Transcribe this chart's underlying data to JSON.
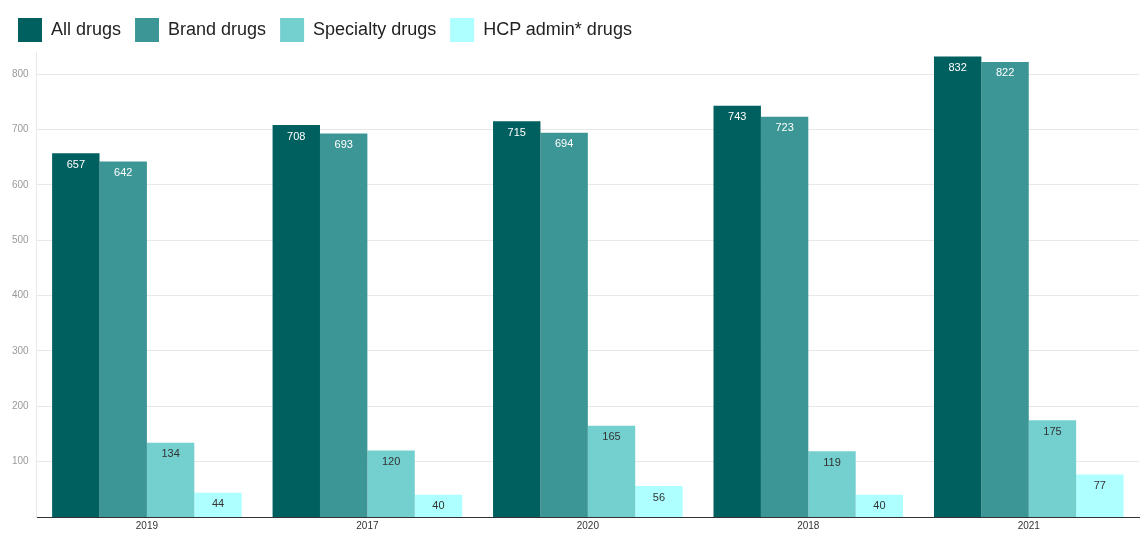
{
  "chart_data": {
    "type": "bar",
    "categories": [
      "2019",
      "2017",
      "2020",
      "2018",
      "2021"
    ],
    "series": [
      {
        "name": "All drugs",
        "color": "#005f5f",
        "values": [
          657,
          708,
          715,
          743,
          832
        ]
      },
      {
        "name": "Brand drugs",
        "color": "#3d9696",
        "values": [
          642,
          693,
          694,
          723,
          822
        ]
      },
      {
        "name": "Specialty drugs",
        "color": "#74cfcf",
        "values": [
          134,
          120,
          165,
          119,
          175
        ]
      },
      {
        "name": "HCP admin* drugs",
        "color": "#aeffff",
        "values": [
          44,
          40,
          56,
          40,
          77
        ]
      }
    ],
    "ylim": [
      0,
      840
    ],
    "yticks": [
      100,
      200,
      300,
      400,
      500,
      600,
      700,
      800
    ],
    "grid": "y",
    "legend": "top left",
    "data_labels": true
  }
}
